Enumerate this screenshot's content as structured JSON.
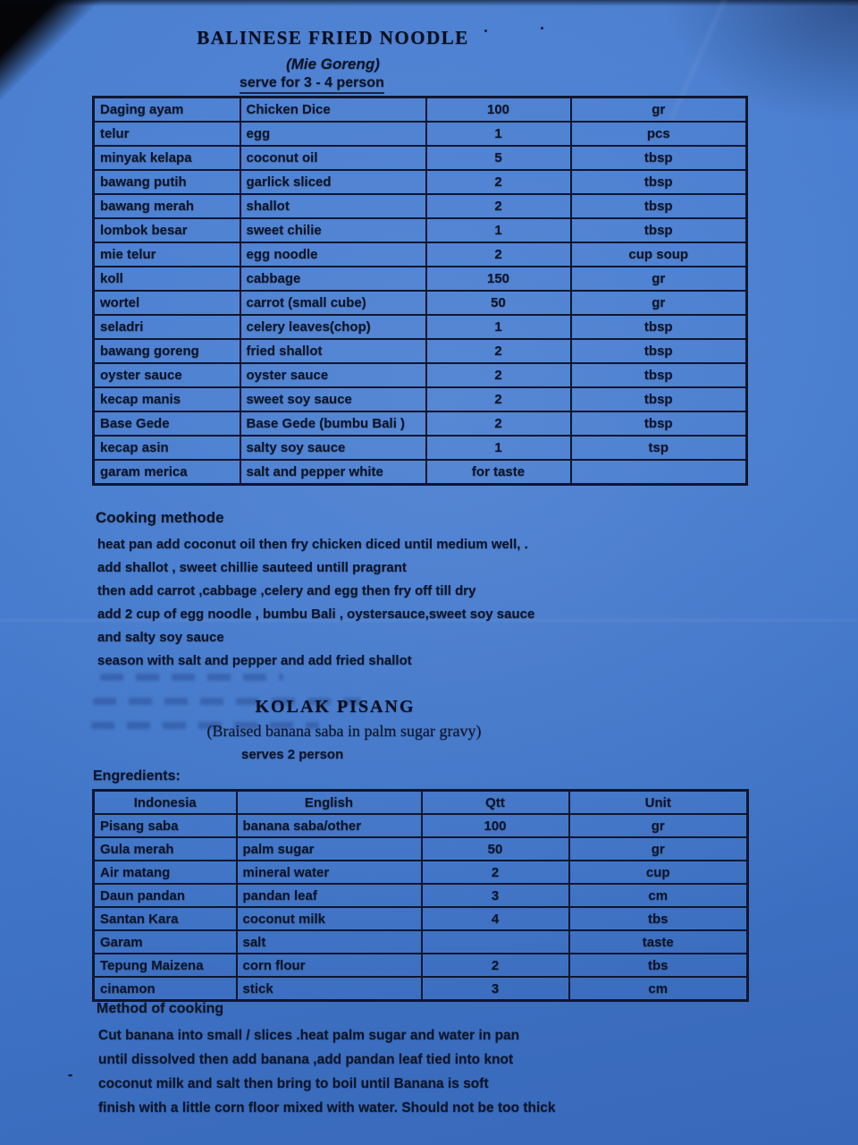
{
  "colors": {
    "paper_blue": "#4379cc",
    "ink": "#0e1529",
    "background": "#000000"
  },
  "recipe1": {
    "title": "BALINESE FRIED NOODLE",
    "subtitle": "(Mie Goreng)",
    "serving": "serve for  3 - 4 person",
    "ingredients": [
      {
        "indonesia": "Daging ayam",
        "english": "Chicken Dice",
        "qty": "100",
        "unit": "gr"
      },
      {
        "indonesia": "telur",
        "english": "egg",
        "qty": "1",
        "unit": "pcs"
      },
      {
        "indonesia": "minyak kelapa",
        "english": "coconut oil",
        "qty": "5",
        "unit": "tbsp"
      },
      {
        "indonesia": "bawang putih",
        "english": "garlick sliced",
        "qty": "2",
        "unit": "tbsp"
      },
      {
        "indonesia": "bawang merah",
        "english": "shallot",
        "qty": "2",
        "unit": "tbsp"
      },
      {
        "indonesia": "lombok besar",
        "english": "sweet chilie",
        "qty": "1",
        "unit": "tbsp"
      },
      {
        "indonesia": "mie telur",
        "english": "egg noodle",
        "qty": "2",
        "unit": "cup soup"
      },
      {
        "indonesia": "koll",
        "english": "cabbage",
        "qty": "150",
        "unit": "gr"
      },
      {
        "indonesia": "wortel",
        "english": "carrot (small cube)",
        "qty": "50",
        "unit": "gr"
      },
      {
        "indonesia": "seladri",
        "english": "celery leaves(chop)",
        "qty": "1",
        "unit": "tbsp"
      },
      {
        "indonesia": "bawang goreng",
        "english": "fried shallot",
        "qty": "2",
        "unit": "tbsp"
      },
      {
        "indonesia": "oyster sauce",
        "english": "oyster sauce",
        "qty": "2",
        "unit": "tbsp"
      },
      {
        "indonesia": "kecap manis",
        "english": "sweet soy sauce",
        "qty": "2",
        "unit": "tbsp"
      },
      {
        "indonesia": "Base Gede",
        "english": "Base Gede (bumbu Bali )",
        "qty": "2",
        "unit": "tbsp"
      },
      {
        "indonesia": "kecap asin",
        "english": "salty soy sauce",
        "qty": "1",
        "unit": "tsp"
      },
      {
        "indonesia": "garam merica",
        "english": "salt and pepper white",
        "qty": "for taste",
        "unit": ""
      }
    ],
    "method_title": "Cooking methode",
    "method_lines": [
      "heat pan add coconut oil then fry chicken diced until medium well,  .",
      "add shallot , sweet chillie  sauteed untill pragrant",
      "then add carrot ,cabbage ,celery and egg then fry off till dry",
      "add 2 cup of egg noodle , bumbu Bali , oystersauce,sweet soy sauce",
      "and salty soy sauce",
      "season with salt and pepper and add fried shallot"
    ]
  },
  "recipe2": {
    "title": "KOLAK PISANG",
    "subtitle": "(Braised banana saba in palm sugar gravy)",
    "serving": "serves 2 person",
    "ingredients_label": "Engredients:",
    "table_headers": [
      "Indonesia",
      "English",
      "Qtt",
      "Unit"
    ],
    "ingredients": [
      {
        "indonesia": "Pisang saba",
        "english": "banana saba/other",
        "qty": "100",
        "unit": "gr"
      },
      {
        "indonesia": "Gula merah",
        "english": "palm sugar",
        "qty": "50",
        "unit": "gr"
      },
      {
        "indonesia": "Air matang",
        "english": "mineral water",
        "qty": "2",
        "unit": "cup"
      },
      {
        "indonesia": "Daun pandan",
        "english": "pandan leaf",
        "qty": "3",
        "unit": "cm"
      },
      {
        "indonesia": "Santan Kara",
        "english": "coconut milk",
        "qty": "4",
        "unit": "tbs"
      },
      {
        "indonesia": "Garam",
        "english": "salt",
        "qty": "",
        "unit": "taste"
      },
      {
        "indonesia": "Tepung Maizena",
        "english": "corn flour",
        "qty": "2",
        "unit": "tbs"
      },
      {
        "indonesia": "cinamon",
        "english": "stick",
        "qty": "3",
        "unit": "cm"
      }
    ],
    "method_title": "Method of cooking",
    "method_dash": "-",
    "method_lines": [
      "Cut banana into small / slices .heat palm sugar and water in pan",
      "until dissolved then add banana ,add pandan leaf tied into knot",
      "coconut milk and salt then bring to boil until Banana is soft",
      "finish with a little  corn floor mixed with water. Should not be too thick"
    ]
  }
}
